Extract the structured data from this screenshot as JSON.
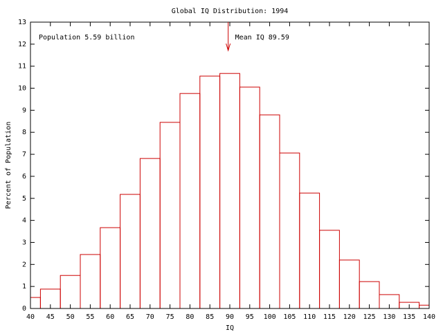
{
  "chart_data": {
    "type": "histogram",
    "title": "Global IQ Distribution: 1994",
    "x_label": "IQ",
    "y_label": "Percent of Population",
    "bins": [
      40,
      42.5,
      47.5,
      52.5,
      57.5,
      62.5,
      67.5,
      72.5,
      77.5,
      82.5,
      87.5,
      92.5,
      97.5,
      102.5,
      107.5,
      112.5,
      117.5,
      122.5,
      127.5,
      132.5,
      137.5,
      140
    ],
    "values": [
      0.5,
      0.88,
      1.5,
      2.45,
      3.67,
      5.18,
      6.81,
      8.45,
      9.76,
      10.55,
      10.67,
      10.05,
      8.79,
      7.06,
      5.24,
      3.55,
      2.2,
      1.22,
      0.63,
      0.28,
      0.15
    ],
    "color": "#cc0000",
    "xlim": [
      40,
      140
    ],
    "xticks": [
      40,
      45,
      50,
      55,
      60,
      65,
      70,
      75,
      80,
      85,
      90,
      95,
      100,
      105,
      110,
      115,
      120,
      125,
      130,
      135,
      140
    ],
    "ylim": [
      0,
      13
    ],
    "yticks": [
      0,
      1,
      2,
      3,
      4,
      5,
      6,
      7,
      8,
      9,
      10,
      11,
      12,
      13
    ],
    "annotations": [
      {
        "text": "Population 5.59 billion"
      },
      {
        "text": "Mean IQ 89.59",
        "x": 89.59
      }
    ]
  }
}
